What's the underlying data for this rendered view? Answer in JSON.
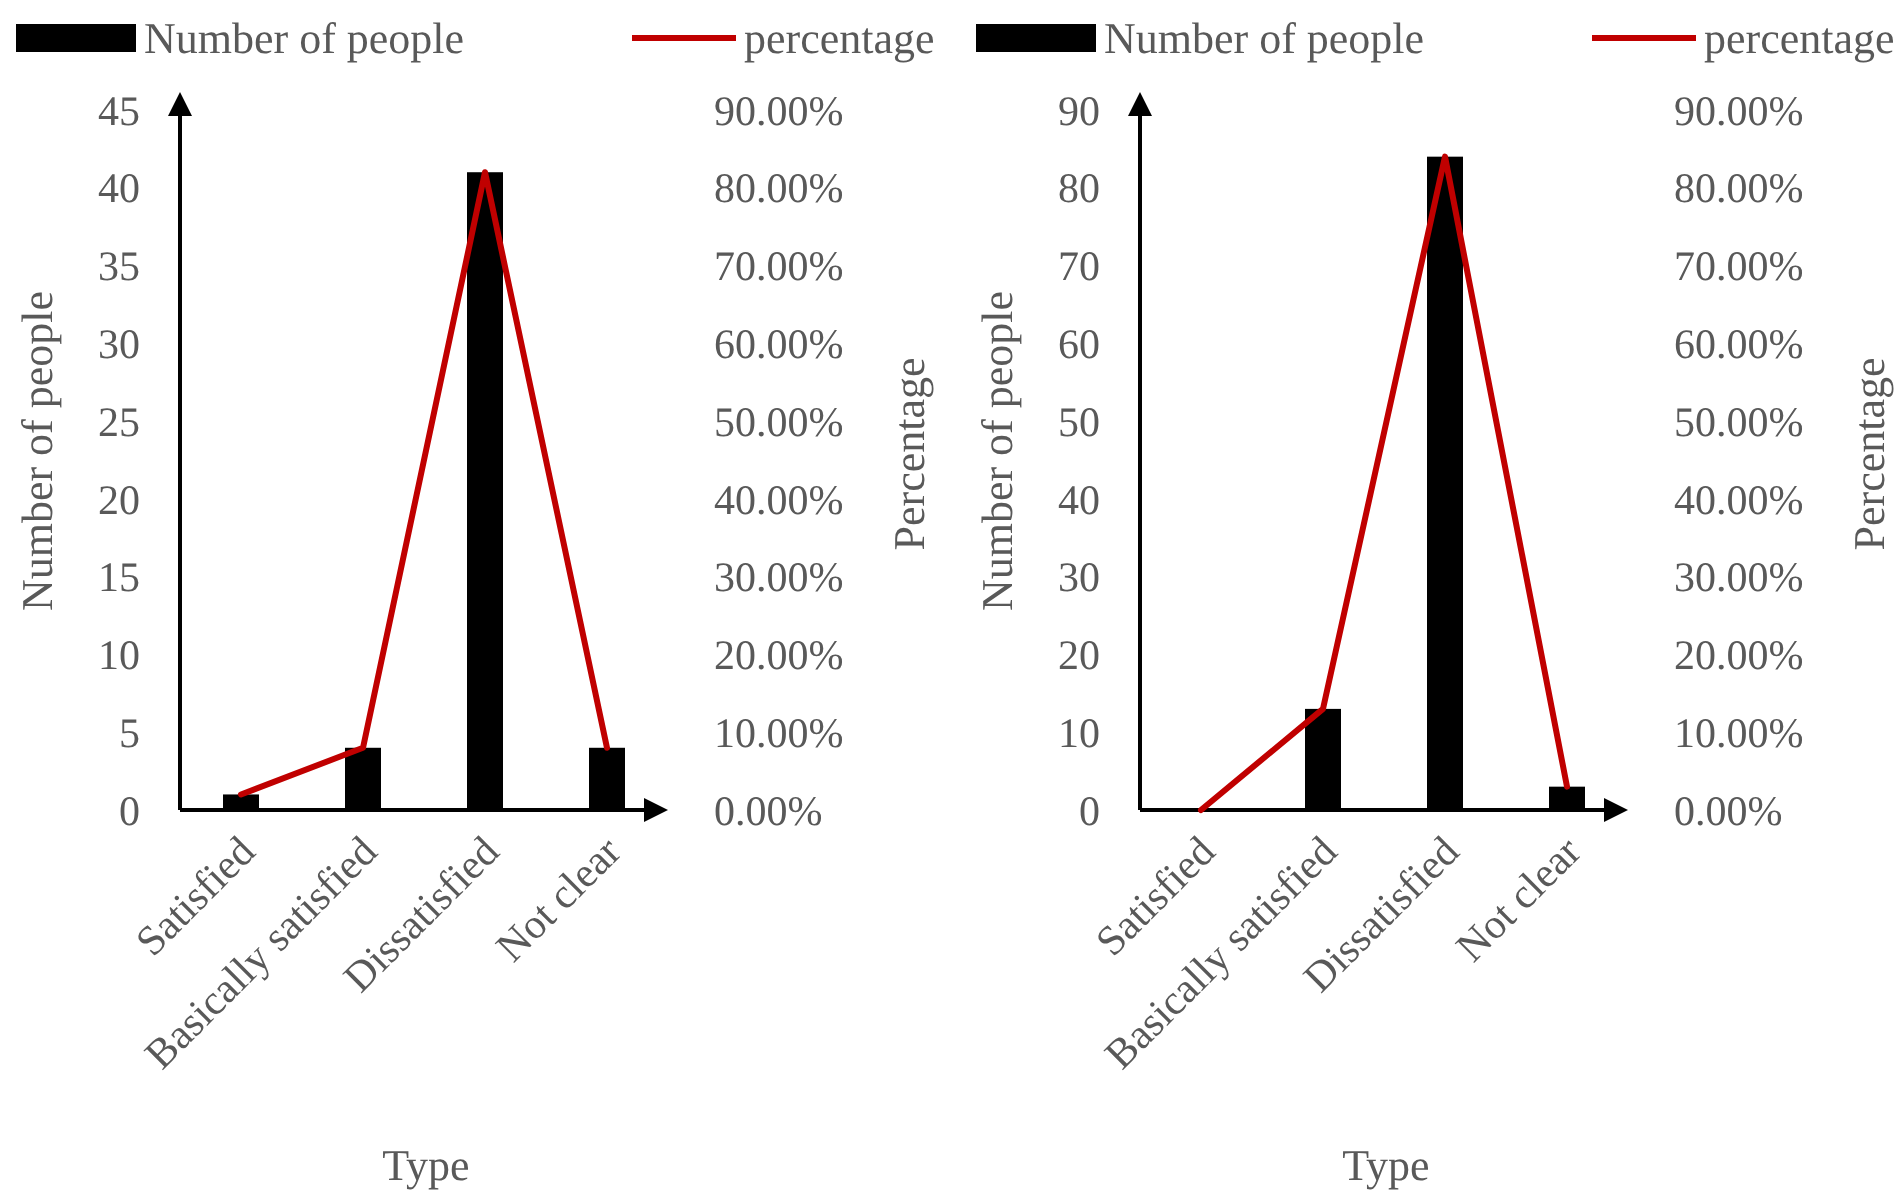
{
  "chart_data": [
    {
      "type": "bar",
      "categories": [
        "Satisfied",
        "Basically satisfied",
        "Dissatisfied",
        "Not clear"
      ],
      "xlabel": "Type",
      "ylabel": "Number of people",
      "y2label": "Percentage",
      "legend": "top",
      "series": [
        {
          "name": "Number of people",
          "color": "#000000",
          "values": [
            1,
            4,
            41,
            4
          ]
        },
        {
          "name": "percentage",
          "type": "line",
          "axis": "y2",
          "color": "#c00000",
          "values": [
            2,
            8,
            82,
            8
          ]
        }
      ],
      "ylim": [
        0,
        45
      ],
      "yticks": [
        0,
        5,
        10,
        15,
        20,
        25,
        30,
        35,
        40,
        45
      ],
      "y2lim": [
        0,
        90
      ],
      "y2ticks": [
        {
          "value": 0,
          "label": "0.00%"
        },
        {
          "value": 10,
          "label": "10.00%"
        },
        {
          "value": 20,
          "label": "20.00%"
        },
        {
          "value": 30,
          "label": "30.00%"
        },
        {
          "value": 40,
          "label": "40.00%"
        },
        {
          "value": 50,
          "label": "50.00%"
        },
        {
          "value": 60,
          "label": "60.00%"
        },
        {
          "value": 70,
          "label": "70.00%"
        },
        {
          "value": 80,
          "label": "80.00%"
        },
        {
          "value": 90,
          "label": "90.00%"
        }
      ]
    },
    {
      "type": "bar",
      "categories": [
        "Satisfied",
        "Basically satisfied",
        "Dissatisfied",
        "Not clear"
      ],
      "xlabel": "Type",
      "ylabel": "Number of people",
      "y2label": "Percentage",
      "legend": "top",
      "series": [
        {
          "name": "Number of people",
          "color": "#000000",
          "values": [
            0,
            13,
            84,
            3
          ]
        },
        {
          "name": "percentage",
          "type": "line",
          "axis": "y2",
          "color": "#c00000",
          "values": [
            0,
            13,
            84,
            3
          ]
        }
      ],
      "ylim": [
        0,
        90
      ],
      "yticks": [
        0,
        10,
        20,
        30,
        40,
        50,
        60,
        70,
        80,
        90
      ],
      "y2lim": [
        0,
        90
      ],
      "y2ticks": [
        {
          "value": 0,
          "label": "0.00%"
        },
        {
          "value": 10,
          "label": "10.00%"
        },
        {
          "value": 20,
          "label": "20.00%"
        },
        {
          "value": 30,
          "label": "30.00%"
        },
        {
          "value": 40,
          "label": "40.00%"
        },
        {
          "value": 50,
          "label": "50.00%"
        },
        {
          "value": 60,
          "label": "60.00%"
        },
        {
          "value": 70,
          "label": "70.00%"
        },
        {
          "value": 80,
          "label": "80.00%"
        },
        {
          "value": 90,
          "label": "90.00%"
        }
      ]
    }
  ]
}
